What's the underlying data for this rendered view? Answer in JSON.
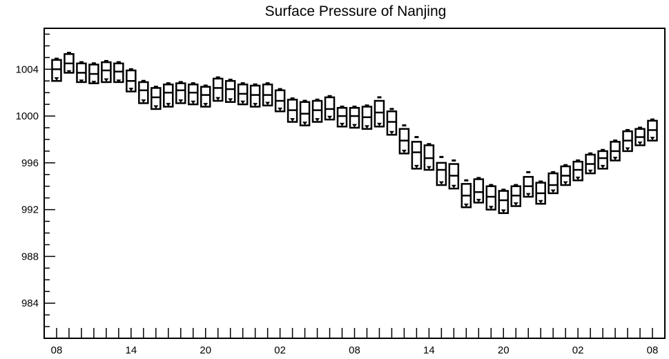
{
  "chart_data": {
    "type": "boxplot",
    "title": "Surface Pressure of Nanjing",
    "xlabel": "",
    "ylabel": "",
    "ylim": [
      981,
      1007.5
    ],
    "y_ticks": [
      984,
      988,
      992,
      996,
      1000,
      1004
    ],
    "x_tick_labels": [
      "08",
      "14",
      "20",
      "02",
      "08",
      "14",
      "20",
      "02",
      "08"
    ],
    "x_tick_hours": [
      0,
      6,
      12,
      18,
      24,
      30,
      36,
      42,
      48
    ],
    "x_range_hours": [
      -1,
      49
    ],
    "grid": false,
    "series": [
      {
        "hours": [
          0,
          1,
          2,
          3,
          4,
          5,
          6,
          7,
          8,
          9,
          10,
          11,
          12,
          13,
          14,
          15,
          16,
          17,
          18,
          19,
          20,
          21,
          22,
          23,
          24,
          25,
          26,
          27,
          28,
          29,
          30,
          31,
          32,
          33,
          34,
          35,
          36,
          37,
          38,
          39,
          40,
          41,
          42,
          43,
          44,
          45,
          46,
          47,
          48
        ],
        "q1": [
          1003.0,
          1003.7,
          1002.9,
          1002.8,
          1002.9,
          1002.9,
          1002.1,
          1001.1,
          1000.6,
          1000.8,
          1001.1,
          1001.0,
          1000.8,
          1001.3,
          1001.2,
          1001.0,
          1000.8,
          1000.9,
          1000.4,
          999.5,
          999.2,
          999.5,
          999.7,
          999.1,
          999.0,
          998.9,
          999.1,
          998.4,
          996.8,
          995.5,
          995.4,
          994.1,
          993.8,
          992.2,
          992.6,
          992.0,
          991.7,
          992.3,
          993.1,
          992.5,
          993.4,
          994.1,
          994.5,
          995.1,
          995.5,
          996.2,
          997.0,
          997.5,
          997.9
        ],
        "median": [
          1004.0,
          1004.5,
          1003.7,
          1003.6,
          1003.9,
          1003.8,
          1003.0,
          1002.2,
          1001.6,
          1002.0,
          1002.2,
          1002.0,
          1001.8,
          1002.4,
          1002.3,
          1001.9,
          1001.8,
          1001.8,
          1001.3,
          1000.5,
          1000.2,
          1000.5,
          1000.6,
          1000.0,
          1000.0,
          999.9,
          1000.3,
          999.5,
          997.9,
          996.9,
          996.4,
          995.4,
          994.9,
          993.2,
          993.5,
          993.1,
          992.8,
          993.2,
          994.0,
          993.4,
          994.1,
          994.9,
          995.4,
          995.9,
          996.4,
          997.0,
          997.9,
          998.2,
          998.8
        ],
        "q3": [
          1004.8,
          1005.3,
          1004.5,
          1004.4,
          1004.6,
          1004.5,
          1003.9,
          1002.9,
          1002.4,
          1002.7,
          1002.8,
          1002.7,
          1002.5,
          1003.2,
          1003.0,
          1002.7,
          1002.6,
          1002.7,
          1002.2,
          1001.4,
          1001.2,
          1001.3,
          1001.6,
          1000.7,
          1000.7,
          1000.8,
          1001.3,
          1000.4,
          998.9,
          997.8,
          997.5,
          996.0,
          995.9,
          994.2,
          994.6,
          994.0,
          993.6,
          994.0,
          994.8,
          994.3,
          995.1,
          995.7,
          996.1,
          996.7,
          997.0,
          997.8,
          998.7,
          998.9,
          999.6
        ],
        "max": [
          1004.9,
          1005.4,
          1004.6,
          1004.5,
          1004.7,
          1004.6,
          1004.0,
          1003.0,
          1002.5,
          1002.8,
          1002.9,
          1002.8,
          1002.6,
          1003.3,
          1003.1,
          1002.8,
          1002.7,
          1002.8,
          1002.3,
          1001.5,
          1001.3,
          1001.4,
          1001.7,
          1000.8,
          1000.8,
          1000.9,
          1001.6,
          1000.6,
          999.2,
          998.2,
          997.6,
          996.5,
          996.2,
          994.5,
          994.7,
          994.1,
          993.7,
          994.1,
          995.2,
          994.4,
          995.2,
          995.8,
          996.2,
          996.8,
          997.1,
          997.9,
          998.8,
          999.0,
          999.7
        ],
        "min": [
          1003.2,
          1003.8,
          1003.0,
          1002.9,
          1003.1,
          1003.0,
          1002.3,
          1001.3,
          1000.8,
          1001.0,
          1001.3,
          1001.2,
          1001.0,
          1001.5,
          1001.4,
          1001.2,
          1001.0,
          1001.1,
          1000.6,
          999.7,
          999.4,
          999.7,
          999.9,
          999.3,
          999.2,
          999.1,
          999.3,
          998.6,
          997.0,
          995.7,
          995.6,
          994.3,
          994.0,
          992.4,
          992.8,
          992.2,
          991.9,
          992.5,
          993.3,
          992.7,
          993.6,
          994.3,
          994.7,
          995.3,
          995.7,
          996.4,
          997.2,
          997.7,
          998.1
        ]
      }
    ]
  }
}
